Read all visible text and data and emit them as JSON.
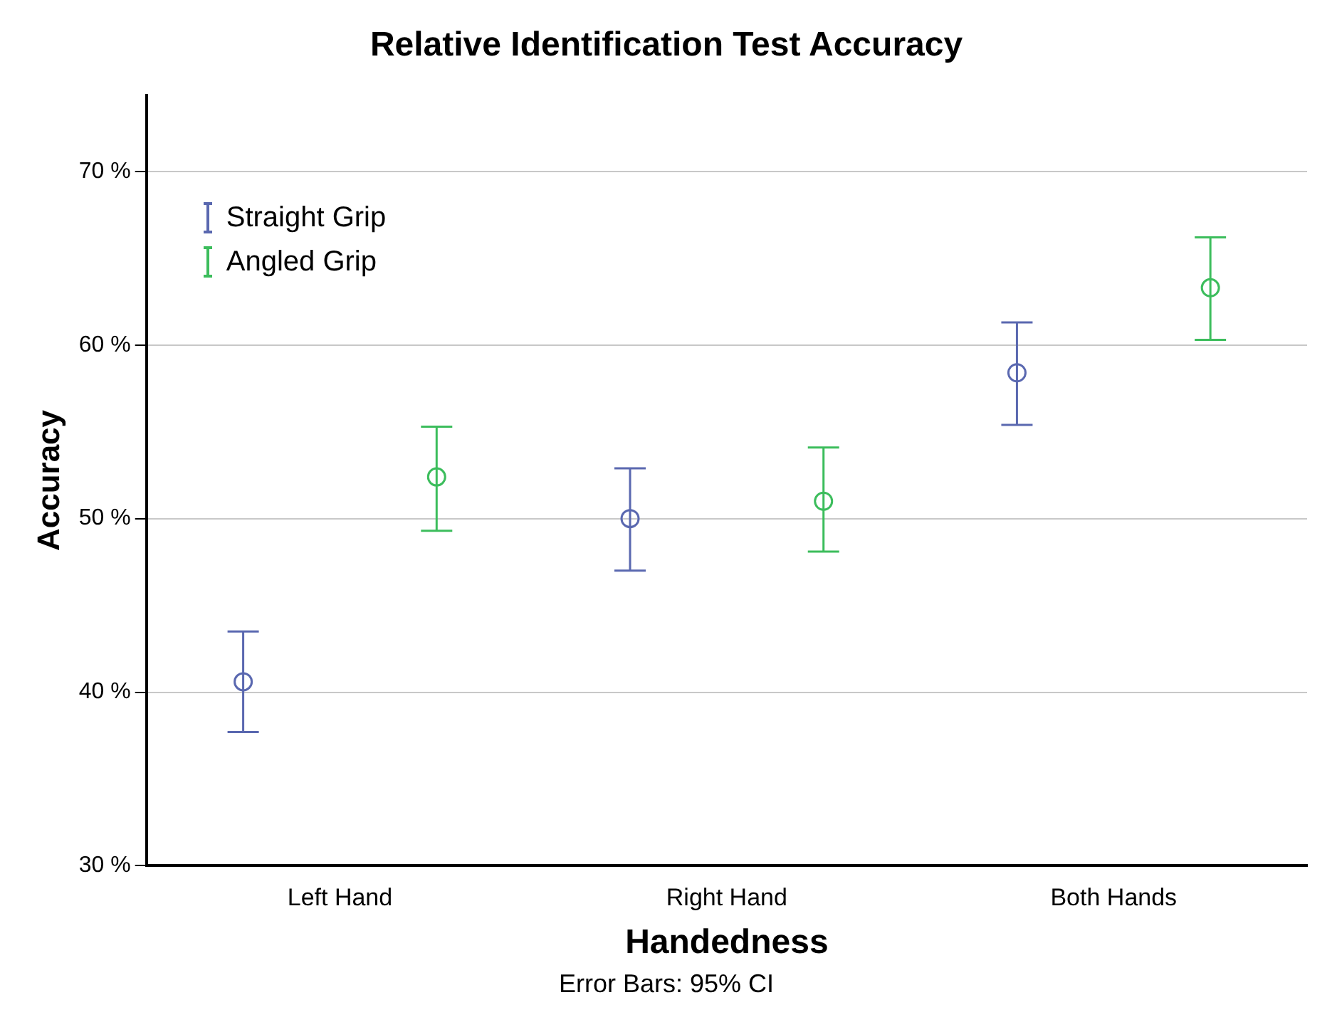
{
  "chart_data": {
    "type": "scatter",
    "title": "Relative Identification Test Accuracy",
    "xlabel": "Handedness",
    "ylabel": "Accuracy",
    "annotations": [
      "Error Bars: 95% CI"
    ],
    "categories": [
      "Left Hand",
      "Right Hand",
      "Both Hands"
    ],
    "series": [
      {
        "name": "Straight Grip",
        "color": "#5a68b0",
        "values": [
          40.6,
          50.0,
          58.4
        ],
        "errors": [
          [
            37.7,
            43.5
          ],
          [
            47.0,
            52.9
          ],
          [
            55.4,
            61.3
          ]
        ]
      },
      {
        "name": "Angled Grip",
        "color": "#3cbd5c",
        "values": [
          52.4,
          51.0,
          63.3
        ],
        "errors": [
          [
            49.3,
            55.3
          ],
          [
            48.1,
            54.1
          ],
          [
            60.3,
            66.2
          ]
        ]
      }
    ],
    "ylim": [
      30,
      74.4
    ],
    "yticks": [
      {
        "value": 30,
        "label": "30 %"
      },
      {
        "value": 40,
        "label": "40 %"
      },
      {
        "value": 50,
        "label": "50 %"
      },
      {
        "value": 60,
        "label": "60 %"
      },
      {
        "value": 70,
        "label": "70 %"
      }
    ],
    "grid": "y",
    "legend": "top left",
    "marker": "circle"
  }
}
